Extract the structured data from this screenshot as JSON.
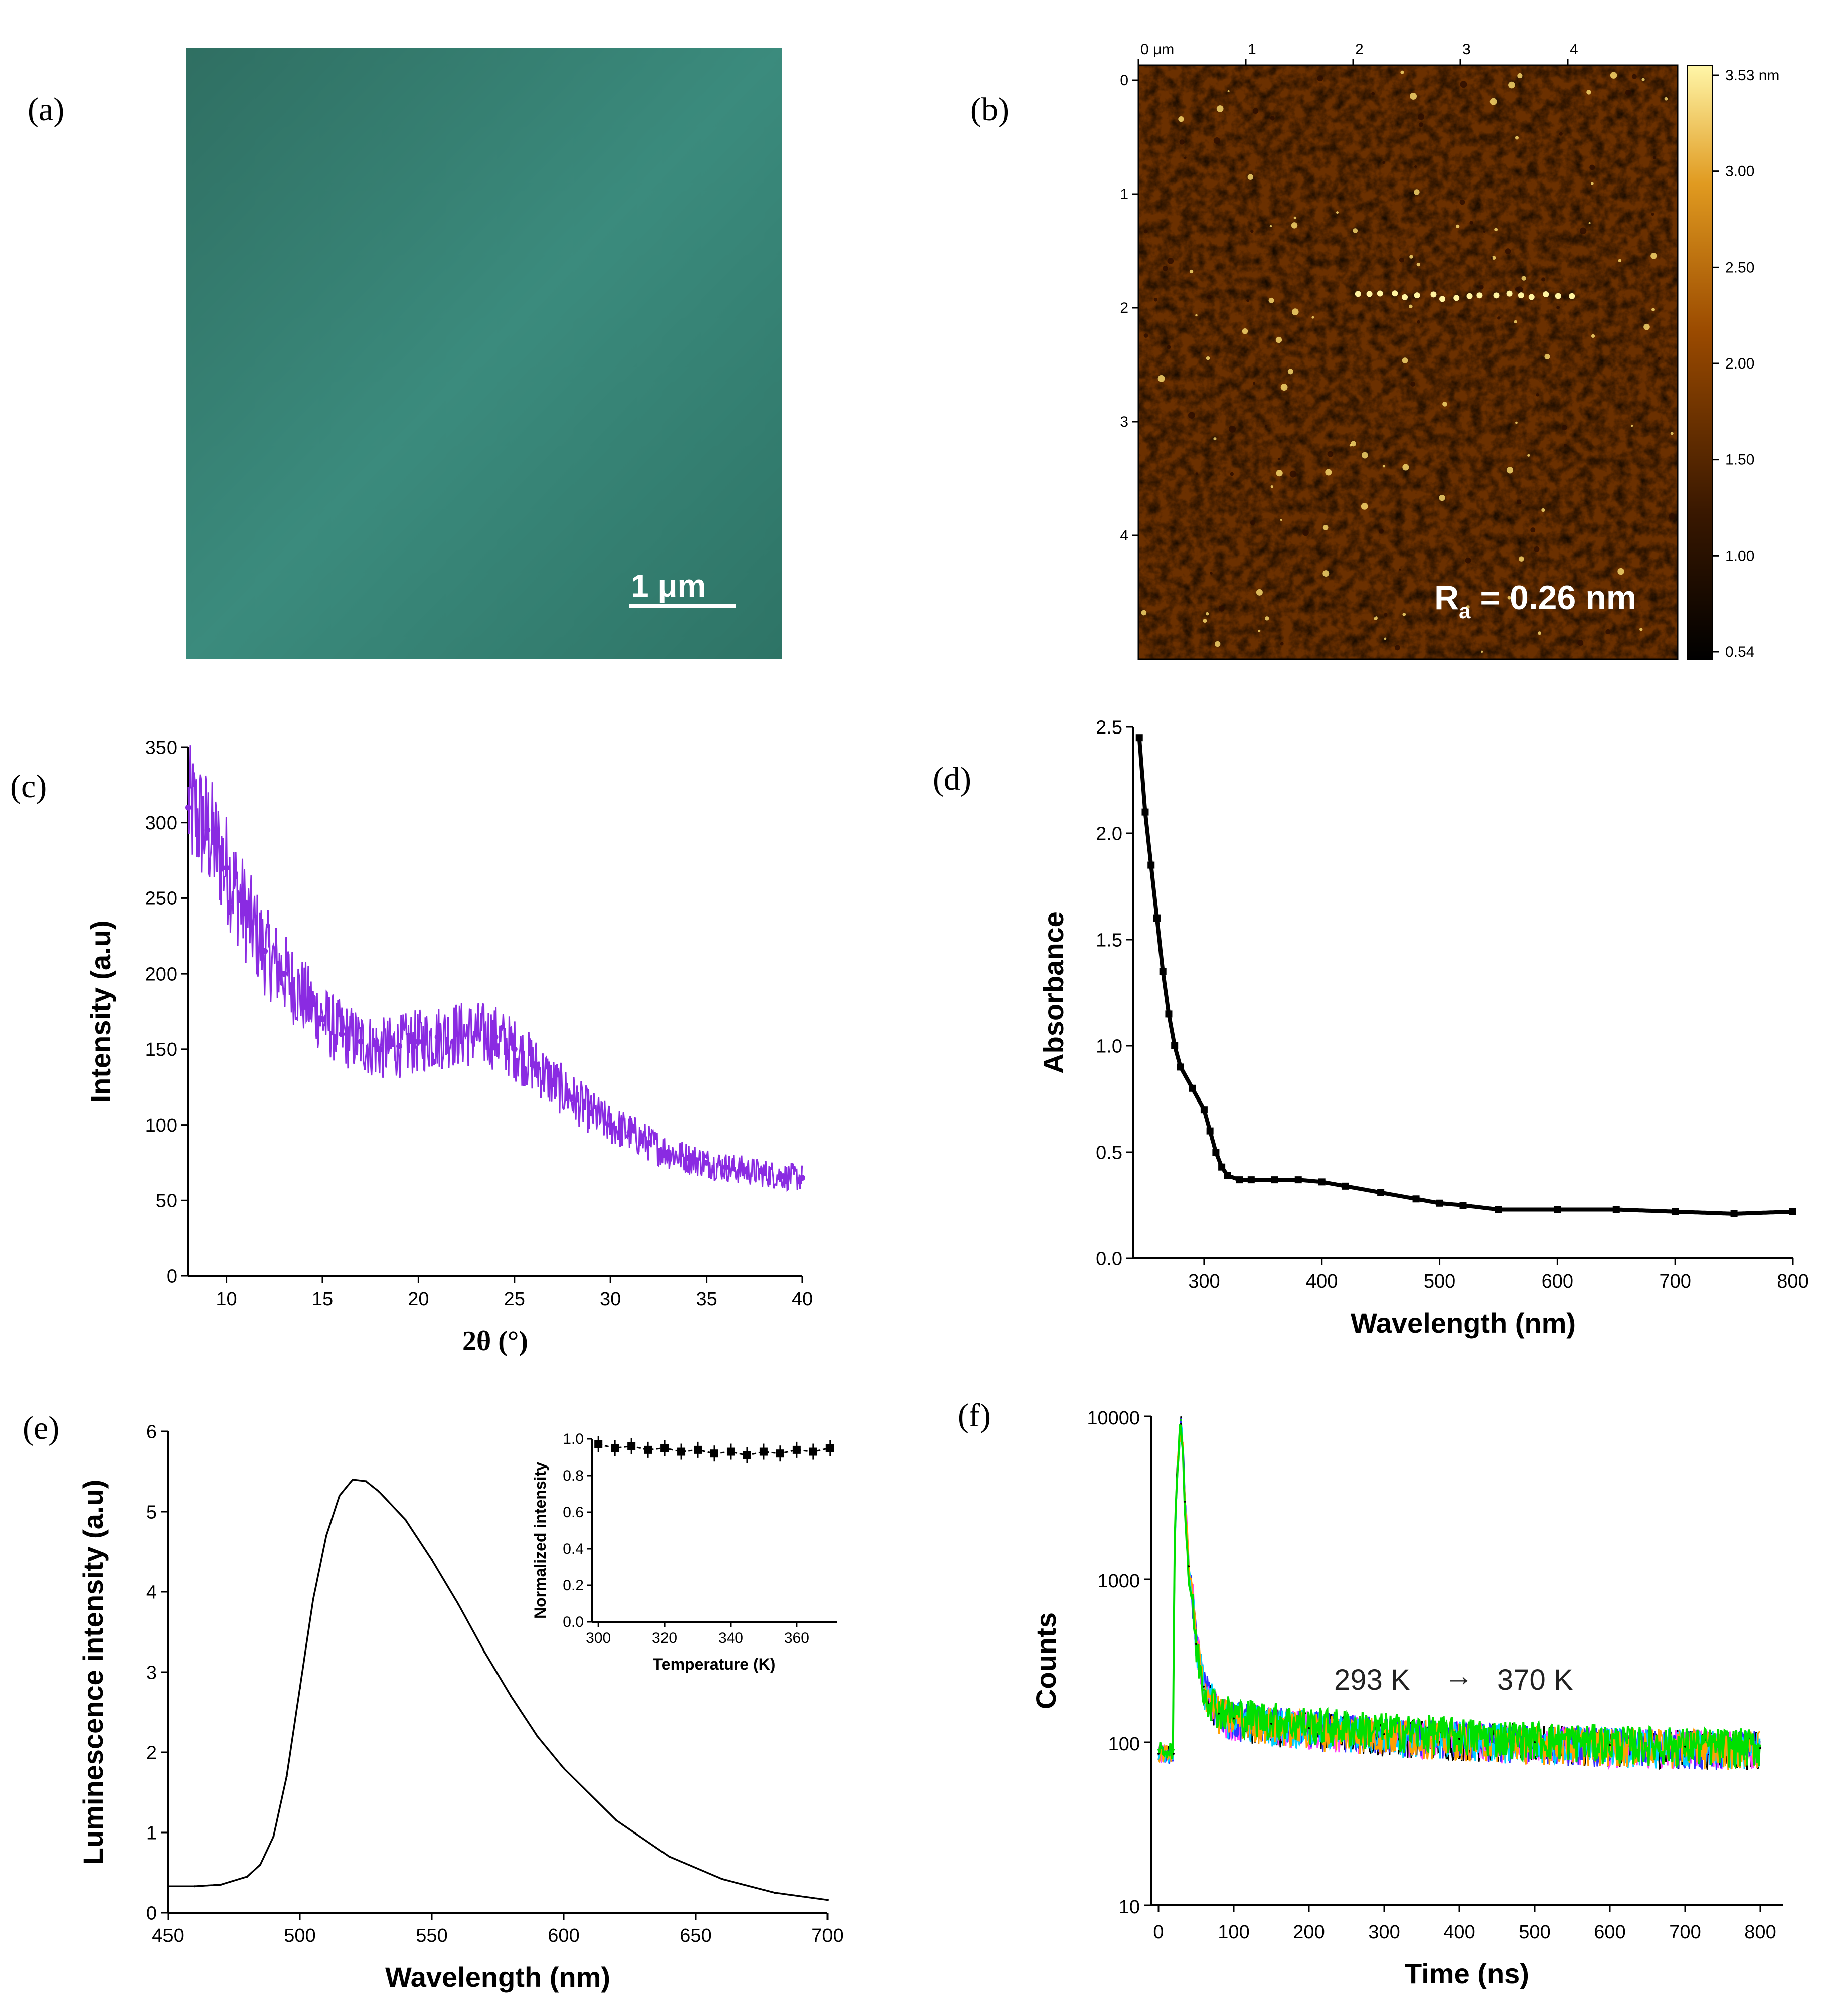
{
  "panels": {
    "a": {
      "label": "(a)",
      "scale_bar": "1 μm",
      "colors": {
        "film": "#3a8a7c"
      }
    },
    "b": {
      "label": "(b)",
      "x_ticks": [
        "0 μm",
        "1",
        "2",
        "3",
        "4"
      ],
      "y_ticks": [
        "0",
        "1",
        "2",
        "3",
        "4"
      ],
      "colorbar_ticks": [
        "3.53 nm",
        "3.00",
        "2.50",
        "2.00",
        "1.50",
        "1.00",
        "0.54"
      ],
      "annotation": "R",
      "annotation_sub": "a",
      "annotation_rest": " = 0.26 nm"
    },
    "c": {
      "label": "(c)"
    },
    "d": {
      "label": "(d)"
    },
    "e": {
      "label": "(e)"
    },
    "f": {
      "label": "(f)",
      "annotation_left": "293 K",
      "annotation_arrow": "→",
      "annotation_right": "370 K"
    }
  },
  "chart_data": [
    {
      "id": "c",
      "type": "line",
      "title": "",
      "xlabel": "2θ (°)",
      "ylabel": "Intensity (a.u)",
      "xlim": [
        8,
        40
      ],
      "ylim": [
        0,
        350
      ],
      "xticks": [
        10,
        15,
        20,
        25,
        30,
        35,
        40
      ],
      "yticks": [
        0,
        50,
        100,
        150,
        200,
        250,
        300,
        350
      ],
      "color": "#8a2be2",
      "x": [
        8,
        9,
        10,
        11,
        12,
        13,
        14,
        15,
        16,
        17,
        18,
        19,
        20,
        21,
        22,
        23,
        24,
        25,
        26,
        27,
        28,
        29,
        30,
        31,
        32,
        33,
        34,
        35,
        36,
        37,
        38,
        39,
        40
      ],
      "y": [
        310,
        295,
        270,
        240,
        215,
        200,
        185,
        170,
        160,
        155,
        150,
        152,
        155,
        158,
        160,
        160,
        158,
        150,
        140,
        128,
        118,
        108,
        100,
        95,
        88,
        82,
        78,
        75,
        72,
        70,
        68,
        66,
        65
      ]
    },
    {
      "id": "d",
      "type": "line",
      "title": "",
      "xlabel": "Wavelength (nm)",
      "ylabel": "Absorbance",
      "xlim": [
        240,
        800
      ],
      "ylim": [
        0,
        2.5
      ],
      "xticks": [
        300,
        400,
        500,
        600,
        700,
        800
      ],
      "yticks": [
        0.0,
        0.5,
        1.0,
        1.5,
        2.0,
        2.5
      ],
      "ytick_labels": [
        "0.0",
        "0.5",
        "1.0",
        "1.5",
        "2.0",
        "2.5"
      ],
      "color": "#000000",
      "x": [
        245,
        250,
        255,
        260,
        265,
        270,
        275,
        280,
        290,
        300,
        305,
        310,
        315,
        320,
        330,
        340,
        360,
        380,
        400,
        420,
        450,
        480,
        500,
        520,
        550,
        600,
        650,
        700,
        750,
        800
      ],
      "y": [
        2.45,
        2.1,
        1.85,
        1.6,
        1.35,
        1.15,
        1.0,
        0.9,
        0.8,
        0.7,
        0.6,
        0.5,
        0.43,
        0.39,
        0.37,
        0.37,
        0.37,
        0.37,
        0.36,
        0.34,
        0.31,
        0.28,
        0.26,
        0.25,
        0.23,
        0.23,
        0.23,
        0.22,
        0.21,
        0.22
      ]
    },
    {
      "id": "e",
      "type": "line",
      "title": "",
      "xlabel": "Wavelength (nm)",
      "ylabel": "Luminescence intensity (a.u)",
      "xlim": [
        450,
        700
      ],
      "ylim": [
        0,
        6
      ],
      "xticks": [
        450,
        500,
        550,
        600,
        650,
        700
      ],
      "yticks": [
        0,
        1,
        2,
        3,
        4,
        5,
        6
      ],
      "color": "#000000",
      "x": [
        450,
        460,
        470,
        480,
        485,
        490,
        495,
        500,
        505,
        510,
        515,
        520,
        525,
        530,
        540,
        550,
        560,
        570,
        580,
        590,
        600,
        620,
        640,
        660,
        680,
        700
      ],
      "y": [
        0.33,
        0.33,
        0.35,
        0.45,
        0.6,
        0.95,
        1.7,
        2.8,
        3.9,
        4.7,
        5.2,
        5.4,
        5.38,
        5.25,
        4.9,
        4.4,
        3.85,
        3.25,
        2.7,
        2.2,
        1.8,
        1.15,
        0.7,
        0.42,
        0.25,
        0.16
      ],
      "inset": {
        "type": "scatter",
        "xlabel": "Temperature (K)",
        "ylabel": "Normalized intensity",
        "xlim": [
          298,
          372
        ],
        "ylim": [
          0,
          1.0
        ],
        "xticks": [
          300,
          320,
          340,
          360
        ],
        "yticks": [
          0.0,
          0.2,
          0.4,
          0.6,
          0.8,
          1.0
        ],
        "ytick_labels": [
          "0.0",
          "0.2",
          "0.4",
          "0.6",
          "0.8",
          "1.0"
        ],
        "x": [
          300,
          305,
          310,
          315,
          320,
          325,
          330,
          335,
          340,
          345,
          350,
          355,
          360,
          365,
          370
        ],
        "y": [
          0.97,
          0.95,
          0.96,
          0.94,
          0.95,
          0.93,
          0.94,
          0.92,
          0.93,
          0.91,
          0.93,
          0.92,
          0.94,
          0.93,
          0.95
        ]
      }
    },
    {
      "id": "f",
      "type": "line",
      "title": "",
      "xlabel": "Time (ns)",
      "ylabel": "Counts",
      "yscale": "log",
      "xlim": [
        -10,
        830
      ],
      "ylim": [
        10,
        10000
      ],
      "xticks": [
        0,
        100,
        200,
        300,
        400,
        500,
        600,
        700,
        800
      ],
      "yticks": [
        10,
        100,
        1000,
        10000
      ],
      "series": [
        {
          "name": "293 K",
          "color": "#000000",
          "x": [
            0,
            20,
            30,
            35,
            40,
            50,
            60,
            80,
            100,
            150,
            200,
            300,
            400,
            500,
            600,
            700,
            800
          ],
          "y": [
            85,
            85,
            9000,
            3000,
            1200,
            400,
            220,
            150,
            140,
            130,
            122,
            112,
            105,
            100,
            96,
            94,
            92
          ]
        },
        {
          "name": "370 K",
          "color": "#00e000",
          "x": [
            0,
            20,
            30,
            35,
            40,
            50,
            60,
            80,
            100,
            150,
            200,
            300,
            400,
            500,
            600,
            700,
            800
          ],
          "y": [
            90,
            90,
            9500,
            2500,
            1000,
            380,
            210,
            160,
            150,
            140,
            130,
            120,
            112,
            106,
            100,
            97,
            95
          ]
        }
      ]
    }
  ]
}
